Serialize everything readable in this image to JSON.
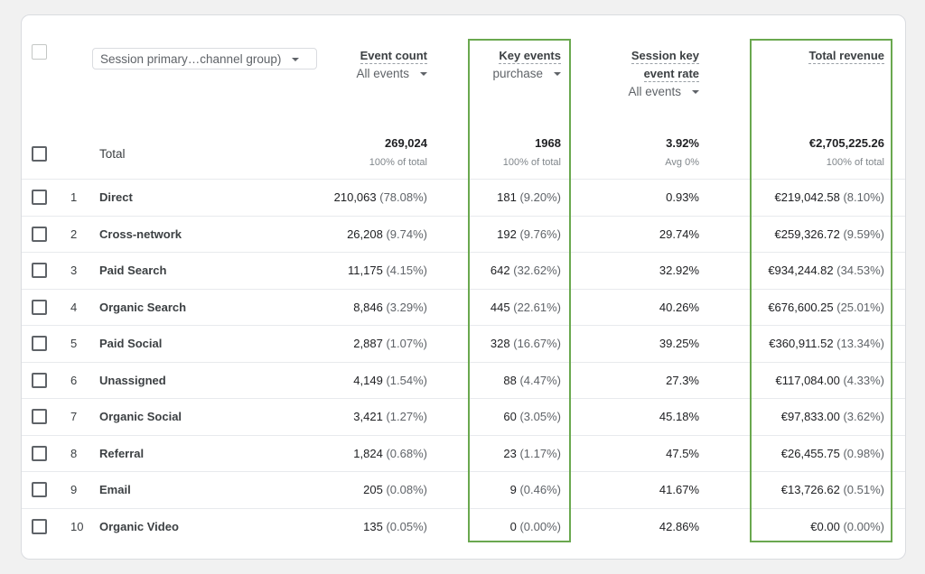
{
  "header": {
    "dimension_label": "Session primary…channel group)",
    "columns": [
      {
        "title": "Event count",
        "sub": "All events"
      },
      {
        "title": "Key events",
        "sub": "purchase"
      },
      {
        "title_line1": "Session key",
        "title_line2": "event rate",
        "sub": "All events"
      },
      {
        "title": "Total revenue"
      }
    ]
  },
  "total": {
    "label": "Total",
    "event_count": "269,024",
    "event_count_sub": "100% of total",
    "key_events": "1968",
    "key_events_sub": "100% of total",
    "rate": "3.92%",
    "rate_sub": "Avg 0%",
    "revenue": "€2,705,225.26",
    "revenue_sub": "100% of total"
  },
  "rows": [
    {
      "i": "1",
      "name": "Direct",
      "ec": "210,063",
      "ecp": "(78.08%)",
      "ke": "181",
      "kep": "(9.20%)",
      "rate": "0.93%",
      "rev": "€219,042.58",
      "revp": "(8.10%)"
    },
    {
      "i": "2",
      "name": "Cross-network",
      "ec": "26,208",
      "ecp": "(9.74%)",
      "ke": "192",
      "kep": "(9.76%)",
      "rate": "29.74%",
      "rev": "€259,326.72",
      "revp": "(9.59%)"
    },
    {
      "i": "3",
      "name": "Paid Search",
      "ec": "11,175",
      "ecp": "(4.15%)",
      "ke": "642",
      "kep": "(32.62%)",
      "rate": "32.92%",
      "rev": "€934,244.82",
      "revp": "(34.53%)"
    },
    {
      "i": "4",
      "name": "Organic Search",
      "ec": "8,846",
      "ecp": "(3.29%)",
      "ke": "445",
      "kep": "(22.61%)",
      "rate": "40.26%",
      "rev": "€676,600.25",
      "revp": "(25.01%)"
    },
    {
      "i": "5",
      "name": "Paid Social",
      "ec": "2,887",
      "ecp": "(1.07%)",
      "ke": "328",
      "kep": "(16.67%)",
      "rate": "39.25%",
      "rev": "€360,911.52",
      "revp": "(13.34%)"
    },
    {
      "i": "6",
      "name": "Unassigned",
      "ec": "4,149",
      "ecp": "(1.54%)",
      "ke": "88",
      "kep": "(4.47%)",
      "rate": "27.3%",
      "rev": "€117,084.00",
      "revp": "(4.33%)"
    },
    {
      "i": "7",
      "name": "Organic Social",
      "ec": "3,421",
      "ecp": "(1.27%)",
      "ke": "60",
      "kep": "(3.05%)",
      "rate": "45.18%",
      "rev": "€97,833.00",
      "revp": "(3.62%)"
    },
    {
      "i": "8",
      "name": "Referral",
      "ec": "1,824",
      "ecp": "(0.68%)",
      "ke": "23",
      "kep": "(1.17%)",
      "rate": "47.5%",
      "rev": "€26,455.75",
      "revp": "(0.98%)"
    },
    {
      "i": "9",
      "name": "Email",
      "ec": "205",
      "ecp": "(0.08%)",
      "ke": "9",
      "kep": "(0.46%)",
      "rate": "41.67%",
      "rev": "€13,726.62",
      "revp": "(0.51%)"
    },
    {
      "i": "10",
      "name": "Organic Video",
      "ec": "135",
      "ecp": "(0.05%)",
      "ke": "0",
      "kep": "(0.00%)",
      "rate": "42.86%",
      "rev": "€0.00",
      "revp": "(0.00%)"
    }
  ],
  "highlight_color": "#6aa84f"
}
